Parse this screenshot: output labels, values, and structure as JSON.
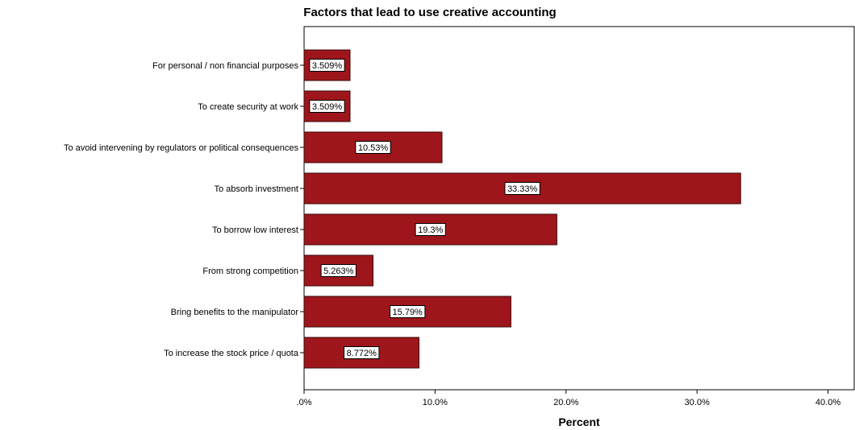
{
  "chart_data": {
    "type": "bar",
    "orientation": "horizontal",
    "title": "Factors that lead to use creative accounting",
    "xlabel": "Percent",
    "ylabel": "",
    "xlim": [
      0,
      42
    ],
    "ticks": [
      0,
      10,
      20,
      30,
      40
    ],
    "tick_labels": [
      ".0%",
      "10.0%",
      "20.0%",
      "30.0%",
      "40.0%"
    ],
    "grid": false,
    "bar_color": "#9e161c",
    "categories": [
      "For personal / non financial purposes",
      "To create security at work",
      "To avoid intervening by regulators or political consequences",
      "To absorb investment",
      "To borrow low interest",
      "From strong competition",
      "Bring benefits to the manipulator",
      "To increase the stock price / quota"
    ],
    "values": [
      3.509,
      3.509,
      10.53,
      33.33,
      19.3,
      5.263,
      15.79,
      8.772
    ],
    "data_labels": [
      "3.509%",
      "3.509%",
      "10.53%",
      "33.33%",
      "19.3%",
      "5.263%",
      "15.79%",
      "8.772%"
    ]
  }
}
